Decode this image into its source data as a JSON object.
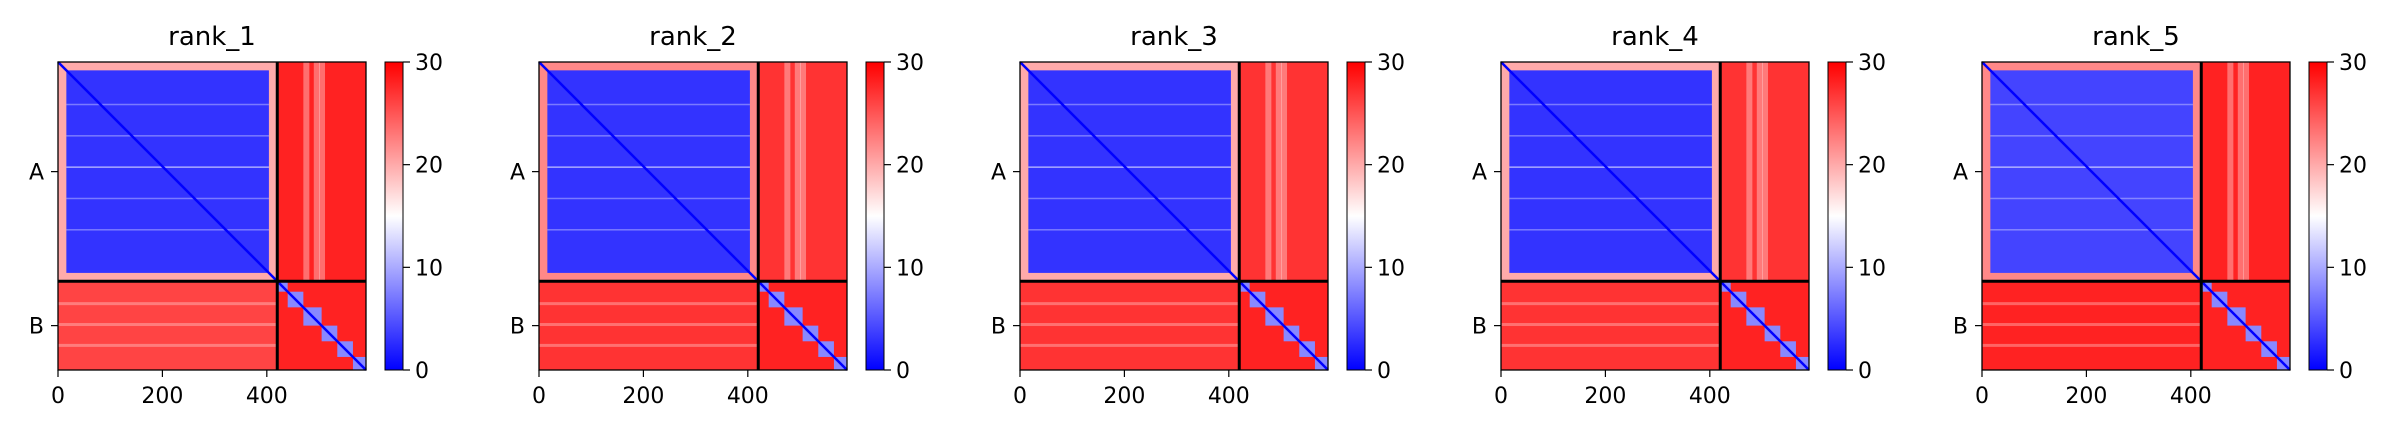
{
  "figure": {
    "colors": {
      "low": "#0000ff",
      "mid": "#ffffff",
      "high": "#ff0000",
      "divider": "#000000"
    },
    "chain_split_residue": 420
  },
  "chart_data": [
    {
      "type": "heatmap",
      "title": "rank_1",
      "x_ticks": [
        0,
        200,
        400
      ],
      "y_tick_labels": [
        "A",
        "B"
      ],
      "xlim": [
        0,
        590
      ],
      "ylim": [
        0,
        590
      ],
      "colorbar": {
        "ticks": [
          0,
          10,
          20,
          30
        ],
        "range": [
          0,
          30
        ],
        "colormap": "bwr"
      },
      "chains": [
        {
          "name": "A",
          "start": 0,
          "end": 420
        },
        {
          "name": "B",
          "start": 420,
          "end": 590
        }
      ],
      "blocks": {
        "AA_core": 3,
        "AA_edge": 20,
        "AB": 28,
        "BA": 26,
        "BB": 28,
        "diagonal": 0
      }
    },
    {
      "type": "heatmap",
      "title": "rank_2",
      "x_ticks": [
        0,
        200,
        400
      ],
      "y_tick_labels": [
        "A",
        "B"
      ],
      "xlim": [
        0,
        590
      ],
      "ylim": [
        0,
        590
      ],
      "colorbar": {
        "ticks": [
          0,
          10,
          20,
          30
        ],
        "range": [
          0,
          30
        ],
        "colormap": "bwr"
      },
      "chains": [
        {
          "name": "A",
          "start": 0,
          "end": 420
        },
        {
          "name": "B",
          "start": 420,
          "end": 590
        }
      ],
      "blocks": {
        "AA_core": 3,
        "AA_edge": 22,
        "AB": 27,
        "BA": 27,
        "BB": 28,
        "diagonal": 0
      }
    },
    {
      "type": "heatmap",
      "title": "rank_3",
      "x_ticks": [
        0,
        200,
        400
      ],
      "y_tick_labels": [
        "A",
        "B"
      ],
      "xlim": [
        0,
        590
      ],
      "ylim": [
        0,
        590
      ],
      "colorbar": {
        "ticks": [
          0,
          10,
          20,
          30
        ],
        "range": [
          0,
          30
        ],
        "colormap": "bwr"
      },
      "chains": [
        {
          "name": "A",
          "start": 0,
          "end": 420
        },
        {
          "name": "B",
          "start": 420,
          "end": 590
        }
      ],
      "blocks": {
        "AA_core": 3,
        "AA_edge": 20,
        "AB": 27,
        "BA": 27,
        "BB": 28,
        "diagonal": 0
      }
    },
    {
      "type": "heatmap",
      "title": "rank_4",
      "x_ticks": [
        0,
        200,
        400
      ],
      "y_tick_labels": [
        "A",
        "B"
      ],
      "xlim": [
        0,
        590
      ],
      "ylim": [
        0,
        590
      ],
      "colorbar": {
        "ticks": [
          0,
          10,
          20,
          30
        ],
        "range": [
          0,
          30
        ],
        "colormap": "bwr"
      },
      "chains": [
        {
          "name": "A",
          "start": 0,
          "end": 420
        },
        {
          "name": "B",
          "start": 420,
          "end": 590
        }
      ],
      "blocks": {
        "AA_core": 3,
        "AA_edge": 20,
        "AB": 27,
        "BA": 27,
        "BB": 28,
        "diagonal": 0
      }
    },
    {
      "type": "heatmap",
      "title": "rank_5",
      "x_ticks": [
        0,
        200,
        400
      ],
      "y_tick_labels": [
        "A",
        "B"
      ],
      "xlim": [
        0,
        590
      ],
      "ylim": [
        0,
        590
      ],
      "colorbar": {
        "ticks": [
          0,
          10,
          20,
          30
        ],
        "range": [
          0,
          30
        ],
        "colormap": "bwr"
      },
      "chains": [
        {
          "name": "A",
          "start": 0,
          "end": 420
        },
        {
          "name": "B",
          "start": 420,
          "end": 590
        }
      ],
      "blocks": {
        "AA_core": 4,
        "AA_edge": 22,
        "AB": 28,
        "BA": 28,
        "BB": 28,
        "diagonal": 0
      }
    }
  ]
}
